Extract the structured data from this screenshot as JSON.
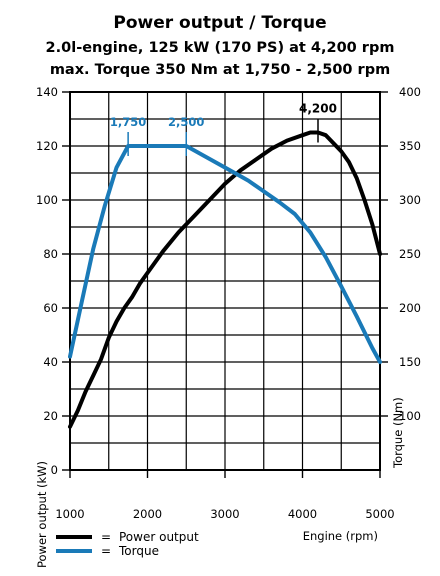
{
  "chart_data": {
    "type": "line",
    "title": "Power output / Torque",
    "subtitle_lines": [
      "2.0l-engine, 125 kW (170 PS) at 4,200 rpm",
      "max. Torque 350 Nm at 1,750 - 2,500 rpm"
    ],
    "xlabel": "Engine (rpm)",
    "ylabel_left": "Power output (kW)",
    "ylabel_right": "Torque (Nm)",
    "xlim": [
      1000,
      5000
    ],
    "ylim_left": [
      0,
      140
    ],
    "ylim_right": [
      50,
      400
    ],
    "x_ticks": [
      1000,
      2000,
      3000,
      4000,
      5000
    ],
    "y_ticks_left": [
      0,
      20,
      40,
      60,
      80,
      100,
      120,
      140
    ],
    "y_ticks_right": [
      100,
      150,
      200,
      250,
      300,
      350,
      400
    ],
    "grid": true,
    "series": [
      {
        "name": "Power output",
        "axis": "left",
        "color": "#000000",
        "points": [
          [
            1000,
            16
          ],
          [
            1100,
            22
          ],
          [
            1200,
            29
          ],
          [
            1300,
            35
          ],
          [
            1400,
            41
          ],
          [
            1500,
            49
          ],
          [
            1600,
            55
          ],
          [
            1700,
            60
          ],
          [
            1800,
            64
          ],
          [
            1900,
            69
          ],
          [
            2000,
            73
          ],
          [
            2200,
            81
          ],
          [
            2400,
            88
          ],
          [
            2600,
            94
          ],
          [
            2800,
            100
          ],
          [
            3000,
            106
          ],
          [
            3200,
            111
          ],
          [
            3400,
            115
          ],
          [
            3600,
            119
          ],
          [
            3800,
            122
          ],
          [
            4000,
            124
          ],
          [
            4100,
            125
          ],
          [
            4200,
            125
          ],
          [
            4300,
            124
          ],
          [
            4400,
            121
          ],
          [
            4500,
            118
          ],
          [
            4600,
            114
          ],
          [
            4700,
            108
          ],
          [
            4800,
            100
          ],
          [
            4900,
            91
          ],
          [
            5000,
            80
          ]
        ]
      },
      {
        "name": "Torque",
        "axis": "right",
        "color": "#1a7ab8",
        "points": [
          [
            1000,
            155
          ],
          [
            1150,
            205
          ],
          [
            1300,
            255
          ],
          [
            1450,
            295
          ],
          [
            1600,
            330
          ],
          [
            1750,
            350
          ],
          [
            2000,
            350
          ],
          [
            2250,
            350
          ],
          [
            2500,
            350
          ],
          [
            2700,
            342
          ],
          [
            2900,
            334
          ],
          [
            3100,
            326
          ],
          [
            3300,
            318
          ],
          [
            3500,
            308
          ],
          [
            3700,
            298
          ],
          [
            3900,
            287
          ],
          [
            4100,
            270
          ],
          [
            4300,
            247
          ],
          [
            4500,
            220
          ],
          [
            4700,
            192
          ],
          [
            4900,
            163
          ],
          [
            5000,
            150
          ]
        ]
      }
    ],
    "annotations": [
      {
        "label": "4,200",
        "series": "Power output",
        "x": 4200
      },
      {
        "label": "1,750",
        "series": "Torque",
        "x": 1750
      },
      {
        "label": "2,500",
        "series": "Torque",
        "x": 2500
      }
    ],
    "legend": [
      {
        "label": "Power output",
        "color": "#000000",
        "eq": "="
      },
      {
        "label": "Torque",
        "color": "#1a7ab8",
        "eq": "="
      }
    ]
  }
}
